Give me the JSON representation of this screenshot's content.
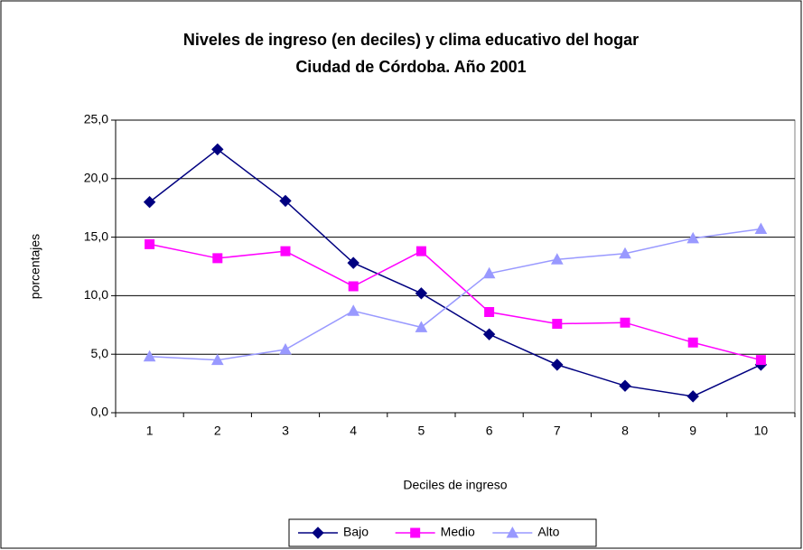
{
  "chart_data": {
    "type": "line",
    "title": "Niveles de ingreso (en deciles) y clima educativo del hogar",
    "subtitle": "Ciudad de Córdoba. Año 2001",
    "x_label": "Deciles de ingreso",
    "y_label": "porcentajes",
    "categories": [
      "1",
      "2",
      "3",
      "4",
      "5",
      "6",
      "7",
      "8",
      "9",
      "10"
    ],
    "series": [
      {
        "name": "Bajo",
        "color": "#000080",
        "marker": "diamond",
        "values": [
          18.0,
          22.5,
          18.1,
          12.8,
          10.2,
          6.7,
          4.1,
          2.3,
          1.4,
          4.1
        ]
      },
      {
        "name": "Medio",
        "color": "#ff00ff",
        "marker": "square",
        "values": [
          14.4,
          13.2,
          13.8,
          10.8,
          13.8,
          8.6,
          7.6,
          7.7,
          6.0,
          4.5
        ]
      },
      {
        "name": "Alto",
        "color": "#9999ff",
        "marker": "triangle",
        "values": [
          4.8,
          4.5,
          5.4,
          8.7,
          7.3,
          11.9,
          13.1,
          13.6,
          14.9,
          15.7
        ]
      }
    ],
    "ylim": [
      0,
      25
    ],
    "yticks": [
      {
        "value": 0,
        "label": "0,0"
      },
      {
        "value": 5,
        "label": "5,0"
      },
      {
        "value": 10,
        "label": "10,0"
      },
      {
        "value": 15,
        "label": "15,0"
      },
      {
        "value": 20,
        "label": "20,0"
      },
      {
        "value": 25,
        "label": "25,0"
      }
    ],
    "grid": true,
    "legend": "bottom"
  }
}
